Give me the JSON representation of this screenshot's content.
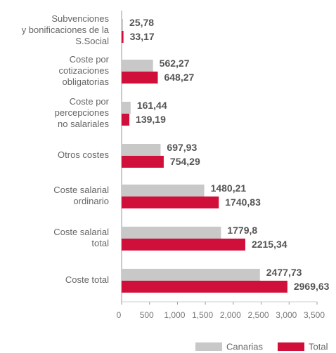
{
  "chart_data": {
    "type": "hbar",
    "categories": [
      "Subvenciones\ny bonificaciones de la\nS.Social",
      "Coste por\ncotizaciones\nobligatorias",
      "Coste por\npercepciones\nno salariales",
      "Otros costes",
      "Coste salarial\nordinario",
      "Coste salarial\ntotal",
      "Coste total"
    ],
    "series": [
      {
        "name": "Canarias",
        "color": "#c8c8c8",
        "values": [
          25.78,
          562.27,
          161.44,
          697.93,
          1480.21,
          1779.8,
          2477.73
        ],
        "value_labels": [
          "25,78",
          "562,27",
          "161,44",
          "697,93",
          "1480,21",
          "1779,8",
          "2477,73"
        ]
      },
      {
        "name": "Total",
        "color": "#d0103a",
        "values": [
          33.17,
          648.27,
          139.19,
          754.29,
          1740.83,
          2215.34,
          2969.63
        ],
        "value_labels": [
          "33,17",
          "648,27",
          "139,19",
          "754,29",
          "1740,83",
          "2215,34",
          "2969,63"
        ]
      }
    ],
    "xlim": [
      0,
      3500
    ],
    "xticks": [
      0,
      500,
      {
        "value": 1000,
        "label": "1,000"
      },
      {
        "value": 1500,
        "label": "1,500"
      },
      {
        "value": 2000,
        "label": "2,000"
      },
      {
        "value": 2500,
        "label": "2,500"
      },
      {
        "value": 3000,
        "label": "3,000"
      },
      {
        "value": 3500,
        "label": "3,500"
      }
    ],
    "legend": "bottom-right"
  }
}
